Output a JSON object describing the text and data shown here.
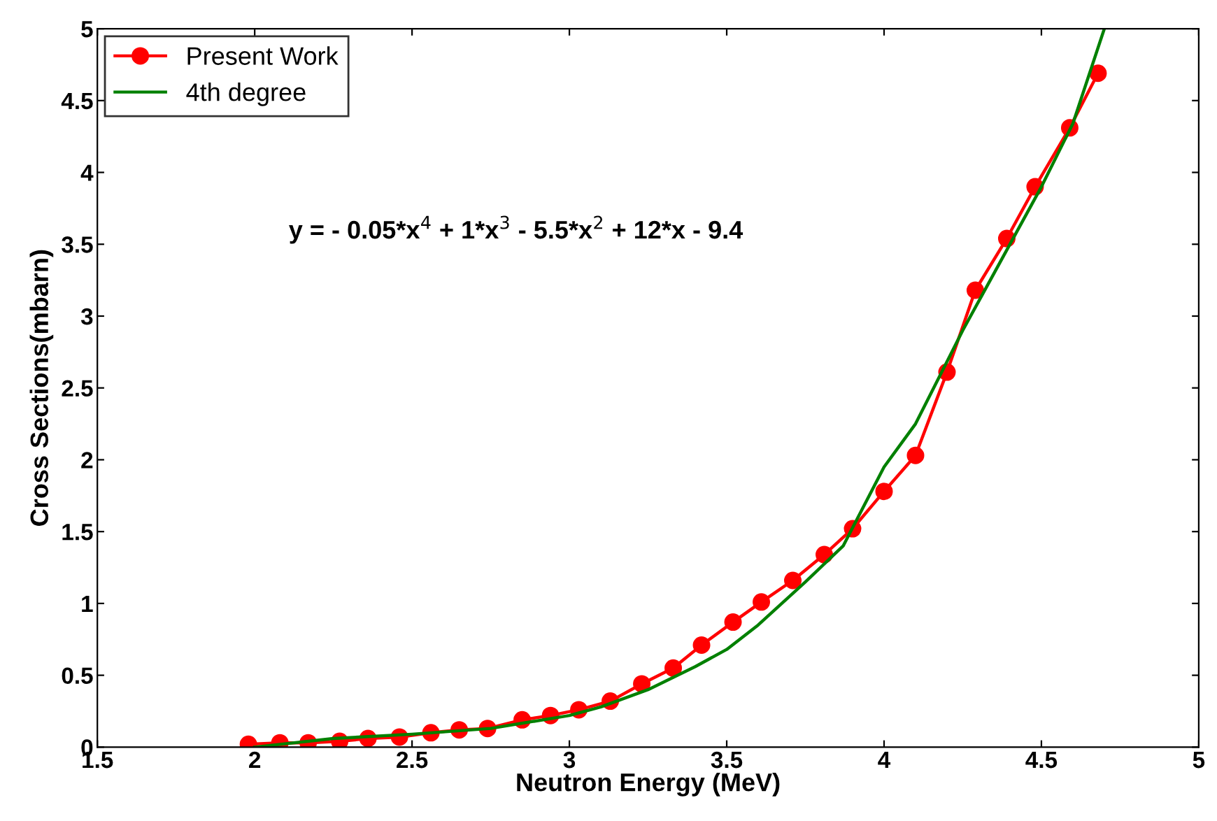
{
  "chart_data": {
    "type": "line",
    "xlabel": "Neutron Energy (MeV)",
    "ylabel": "Cross Sections(mbarn)",
    "xlim": [
      1.5,
      5
    ],
    "ylim": [
      0,
      5
    ],
    "xticks": [
      1.5,
      2,
      2.5,
      3,
      3.5,
      4,
      4.5,
      5
    ],
    "yticks": [
      0,
      0.5,
      1,
      1.5,
      2,
      2.5,
      3,
      3.5,
      4,
      4.5,
      5
    ],
    "legend": "top left",
    "grid": false,
    "annotations": [
      "y = - 0.05*x$^{4}$ + 1*x$^{3}$ - 5.5*x$^{2}$ + 12*x - 9.4"
    ],
    "series": [
      {
        "name": "Present Work",
        "color": "#ff0000",
        "marker": "circle",
        "x": [
          1.98,
          2.08,
          2.17,
          2.27,
          2.36,
          2.46,
          2.56,
          2.65,
          2.74,
          2.85,
          2.94,
          3.03,
          3.13,
          3.23,
          3.33,
          3.42,
          3.52,
          3.61,
          3.71,
          3.81,
          3.9,
          4.0,
          4.1,
          4.2,
          4.29,
          4.39,
          4.48,
          4.59,
          4.68
        ],
        "values": [
          0.02,
          0.03,
          0.03,
          0.04,
          0.06,
          0.07,
          0.1,
          0.12,
          0.13,
          0.19,
          0.22,
          0.26,
          0.32,
          0.44,
          0.55,
          0.71,
          0.87,
          1.01,
          1.16,
          1.34,
          1.52,
          1.78,
          2.03,
          2.61,
          3.18,
          3.54,
          3.9,
          4.31,
          4.69
        ]
      },
      {
        "name": "4th degree",
        "color": "#008000",
        "marker": "none",
        "x": [
          2.0,
          2.25,
          2.5,
          2.75,
          3.0,
          3.1,
          3.25,
          3.4,
          3.5,
          3.6,
          3.75,
          3.87,
          4.0,
          4.1,
          4.19,
          4.25,
          4.35,
          4.5,
          4.6,
          4.7
        ],
        "values": [
          0.0,
          0.06,
          0.09,
          0.13,
          0.22,
          0.28,
          0.4,
          0.56,
          0.68,
          0.85,
          1.15,
          1.4,
          1.95,
          2.25,
          2.64,
          2.9,
          3.3,
          3.9,
          4.34,
          5.0
        ]
      }
    ]
  }
}
